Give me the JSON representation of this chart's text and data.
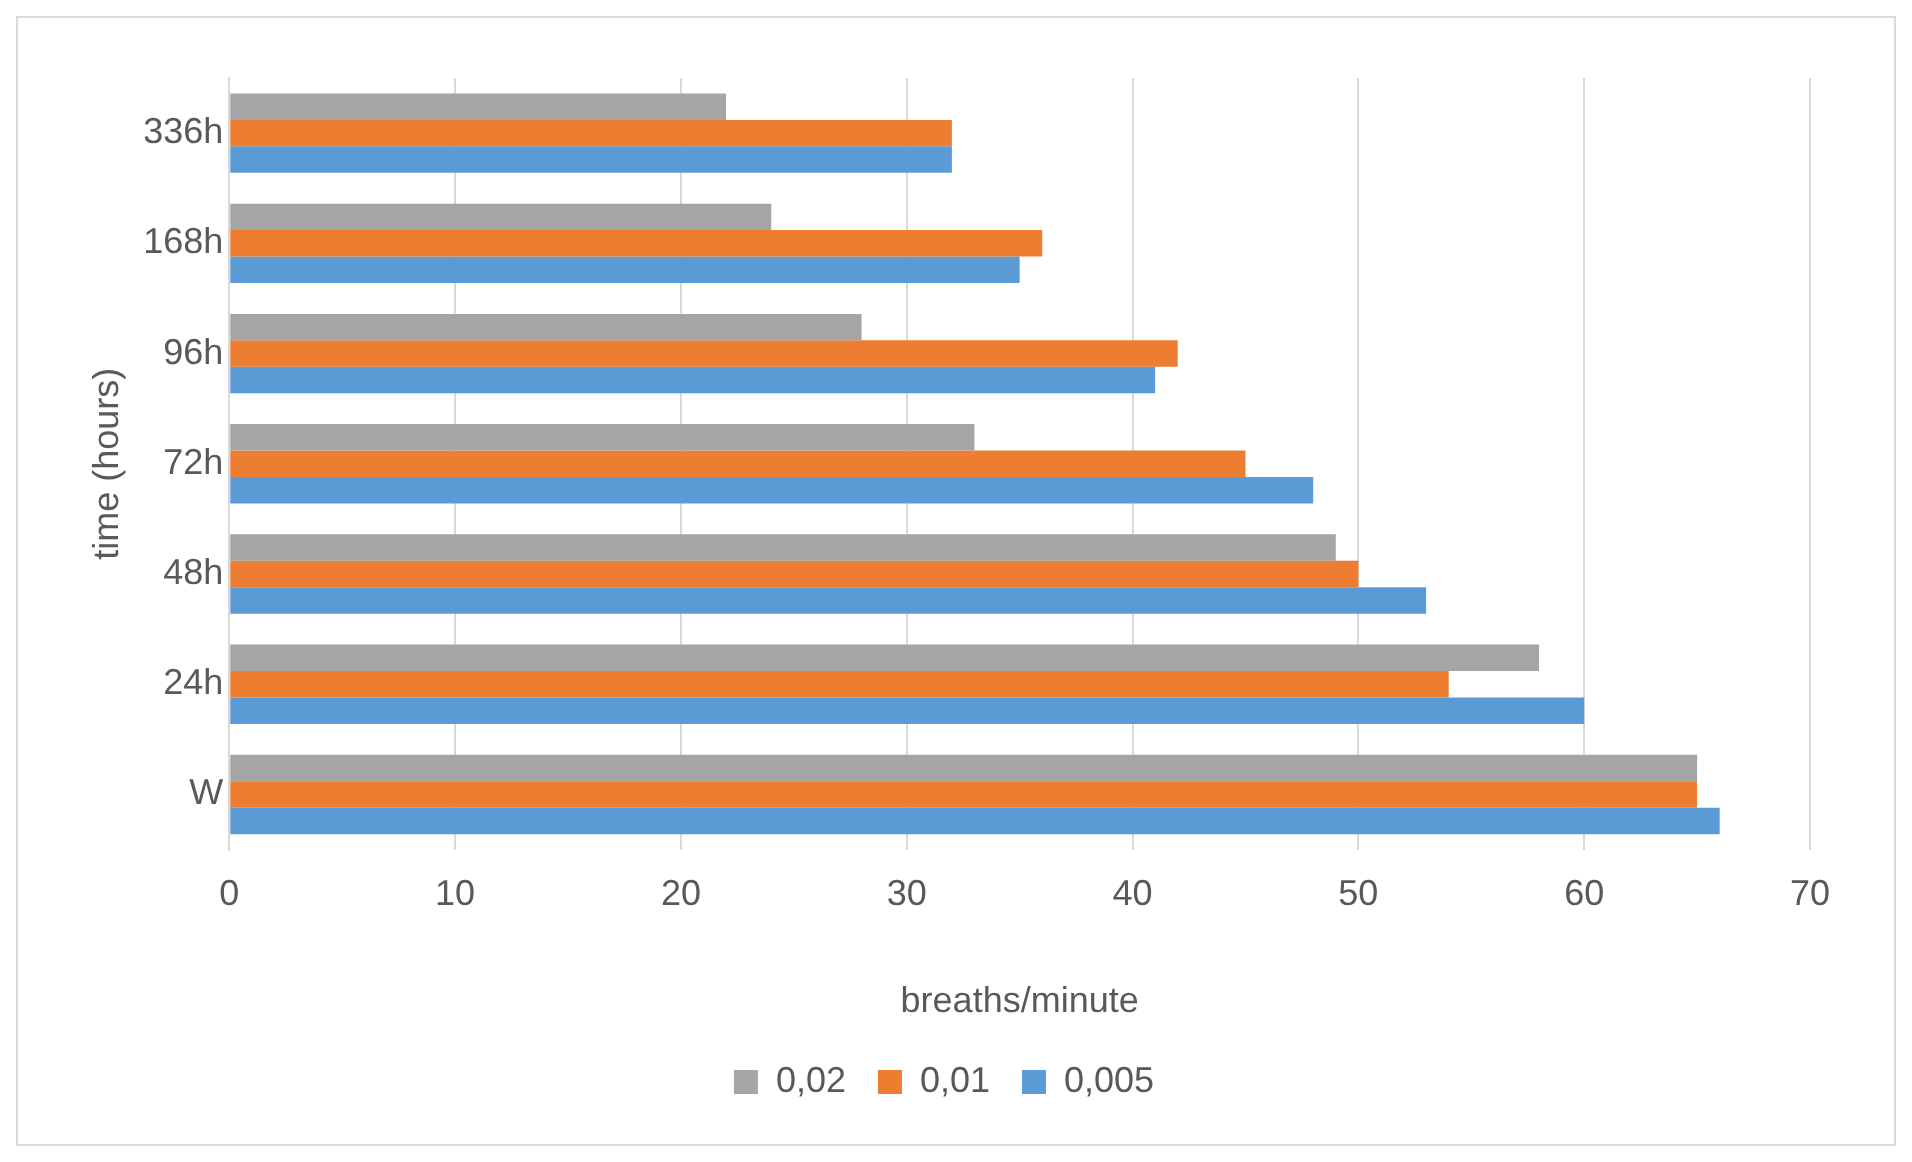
{
  "chart_data": {
    "type": "bar",
    "orientation": "horizontal",
    "xlabel": "breaths/minute",
    "ylabel": "time (hours)",
    "categories": [
      "336h",
      "168h",
      "96h",
      "72h",
      "48h",
      "24h",
      "W"
    ],
    "series": [
      {
        "name": "0,02",
        "color": "#a5a5a5",
        "values": [
          22,
          24,
          28,
          33,
          49,
          58,
          65
        ]
      },
      {
        "name": "0,01",
        "color": "#ed7d31",
        "values": [
          32,
          36,
          42,
          45,
          50,
          54,
          65
        ]
      },
      {
        "name": "0,005",
        "color": "#5b9bd5",
        "values": [
          32,
          35,
          41,
          48,
          53,
          60,
          66
        ]
      }
    ],
    "xlim": [
      0,
      70
    ],
    "xticks": [
      0,
      10,
      20,
      30,
      40,
      50,
      60,
      70
    ],
    "grid": "x",
    "legend": "bottom"
  }
}
